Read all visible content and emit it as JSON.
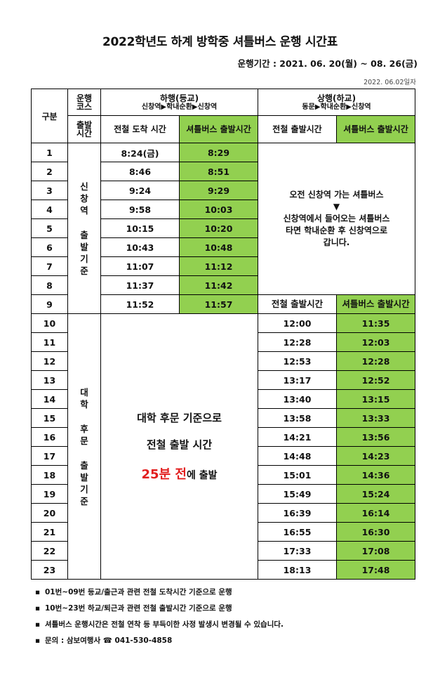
{
  "title": "2022학년도 하계 방학중 셔틀버스 운행 시간표",
  "period": "운행기간 : 2021. 06. 20(월) ~ 08. 26(금)",
  "datestamp": "2022. 06.02일자",
  "header": {
    "gubun": "구분",
    "course": "운행\n코스",
    "depart_time": "출발\n시간",
    "down_title": "하행(등교)",
    "down_route": "신창역▶학내순환▶신창역",
    "up_title": "상행(하교)",
    "up_route": "동문▶학내순환▶신창역",
    "train_arrive": "전철 도착 시간",
    "bus_depart": "셔틀버스 출발시간",
    "train_depart": "전철 출발시간",
    "bus_depart2": "셔틀버스 출발시간"
  },
  "group1_label": [
    "신",
    "창",
    "역",
    "",
    "출",
    "발",
    "기",
    "준"
  ],
  "group2_label": [
    "대",
    "학",
    "",
    "후",
    "문",
    "",
    "출",
    "발",
    "기",
    "준"
  ],
  "morning_rows": [
    {
      "no": "1",
      "train": "8:24(금)",
      "bus": "8:29"
    },
    {
      "no": "2",
      "train": "8:46",
      "bus": "8:51"
    },
    {
      "no": "3",
      "train": "9:24",
      "bus": "9:29"
    },
    {
      "no": "4",
      "train": "9:58",
      "bus": "10:03"
    },
    {
      "no": "5",
      "train": "10:15",
      "bus": "10:20"
    },
    {
      "no": "6",
      "train": "10:43",
      "bus": "10:48"
    },
    {
      "no": "7",
      "train": "11:07",
      "bus": "11:12"
    },
    {
      "no": "8",
      "train": "11:37",
      "bus": "11:42"
    },
    {
      "no": "9",
      "train": "11:52",
      "bus": "11:57"
    }
  ],
  "morning_note": {
    "line1": "오전 신창역 가는 셔틀버스",
    "arrow": "▼",
    "line2": "신창역에서 들어오는 셔틀버스",
    "line3": "타면 학내순환 후 신창역으로",
    "line4": "갑니다."
  },
  "row9_up": {
    "train_label": "전철 출발시간",
    "bus_label": "셔틀버스 출발시간"
  },
  "afternoon_rows": [
    {
      "no": "10",
      "train": "12:00",
      "bus": "11:35"
    },
    {
      "no": "11",
      "train": "12:28",
      "bus": "12:03"
    },
    {
      "no": "12",
      "train": "12:53",
      "bus": "12:28"
    },
    {
      "no": "13",
      "train": "13:17",
      "bus": "12:52"
    },
    {
      "no": "14",
      "train": "13:40",
      "bus": "13:15"
    },
    {
      "no": "15",
      "train": "13:58",
      "bus": "13:33"
    },
    {
      "no": "16",
      "train": "14:21",
      "bus": "13:56"
    },
    {
      "no": "17",
      "train": "14:48",
      "bus": "14:23"
    },
    {
      "no": "18",
      "train": "15:01",
      "bus": "14:36"
    },
    {
      "no": "19",
      "train": "15:49",
      "bus": "15:24"
    },
    {
      "no": "20",
      "train": "16:39",
      "bus": "16:14"
    },
    {
      "no": "21",
      "train": "16:55",
      "bus": "16:30"
    },
    {
      "no": "22",
      "train": "17:33",
      "bus": "17:08"
    },
    {
      "no": "23",
      "train": "18:13",
      "bus": "17:48"
    }
  ],
  "afternoon_note": {
    "line1": "대학 후문 기준으로",
    "line2": "전철 출발 시간",
    "line3_red": "25분 전",
    "line3_rest": "에 출발"
  },
  "notes": [
    {
      "bullet": "▪",
      "text": "01번~09번 등교/출근과 관련 전철 도착시간 기준으로 운행"
    },
    {
      "bullet": "▪",
      "text": "10번~23번 하교/퇴근과 관련 전철 출발시간 기준으로 운행"
    },
    {
      "bullet": "▪",
      "text": "셔틀버스 운행시간은 전철 연착 등 부득이한 사정 발생시 변경될 수 있습니다."
    },
    {
      "bullet": "▪",
      "text": "문의 : 삼보여행사 ☎ 041-530-4858"
    }
  ],
  "colors": {
    "highlight": "#92d050",
    "accent_red": "#e21e1e"
  }
}
